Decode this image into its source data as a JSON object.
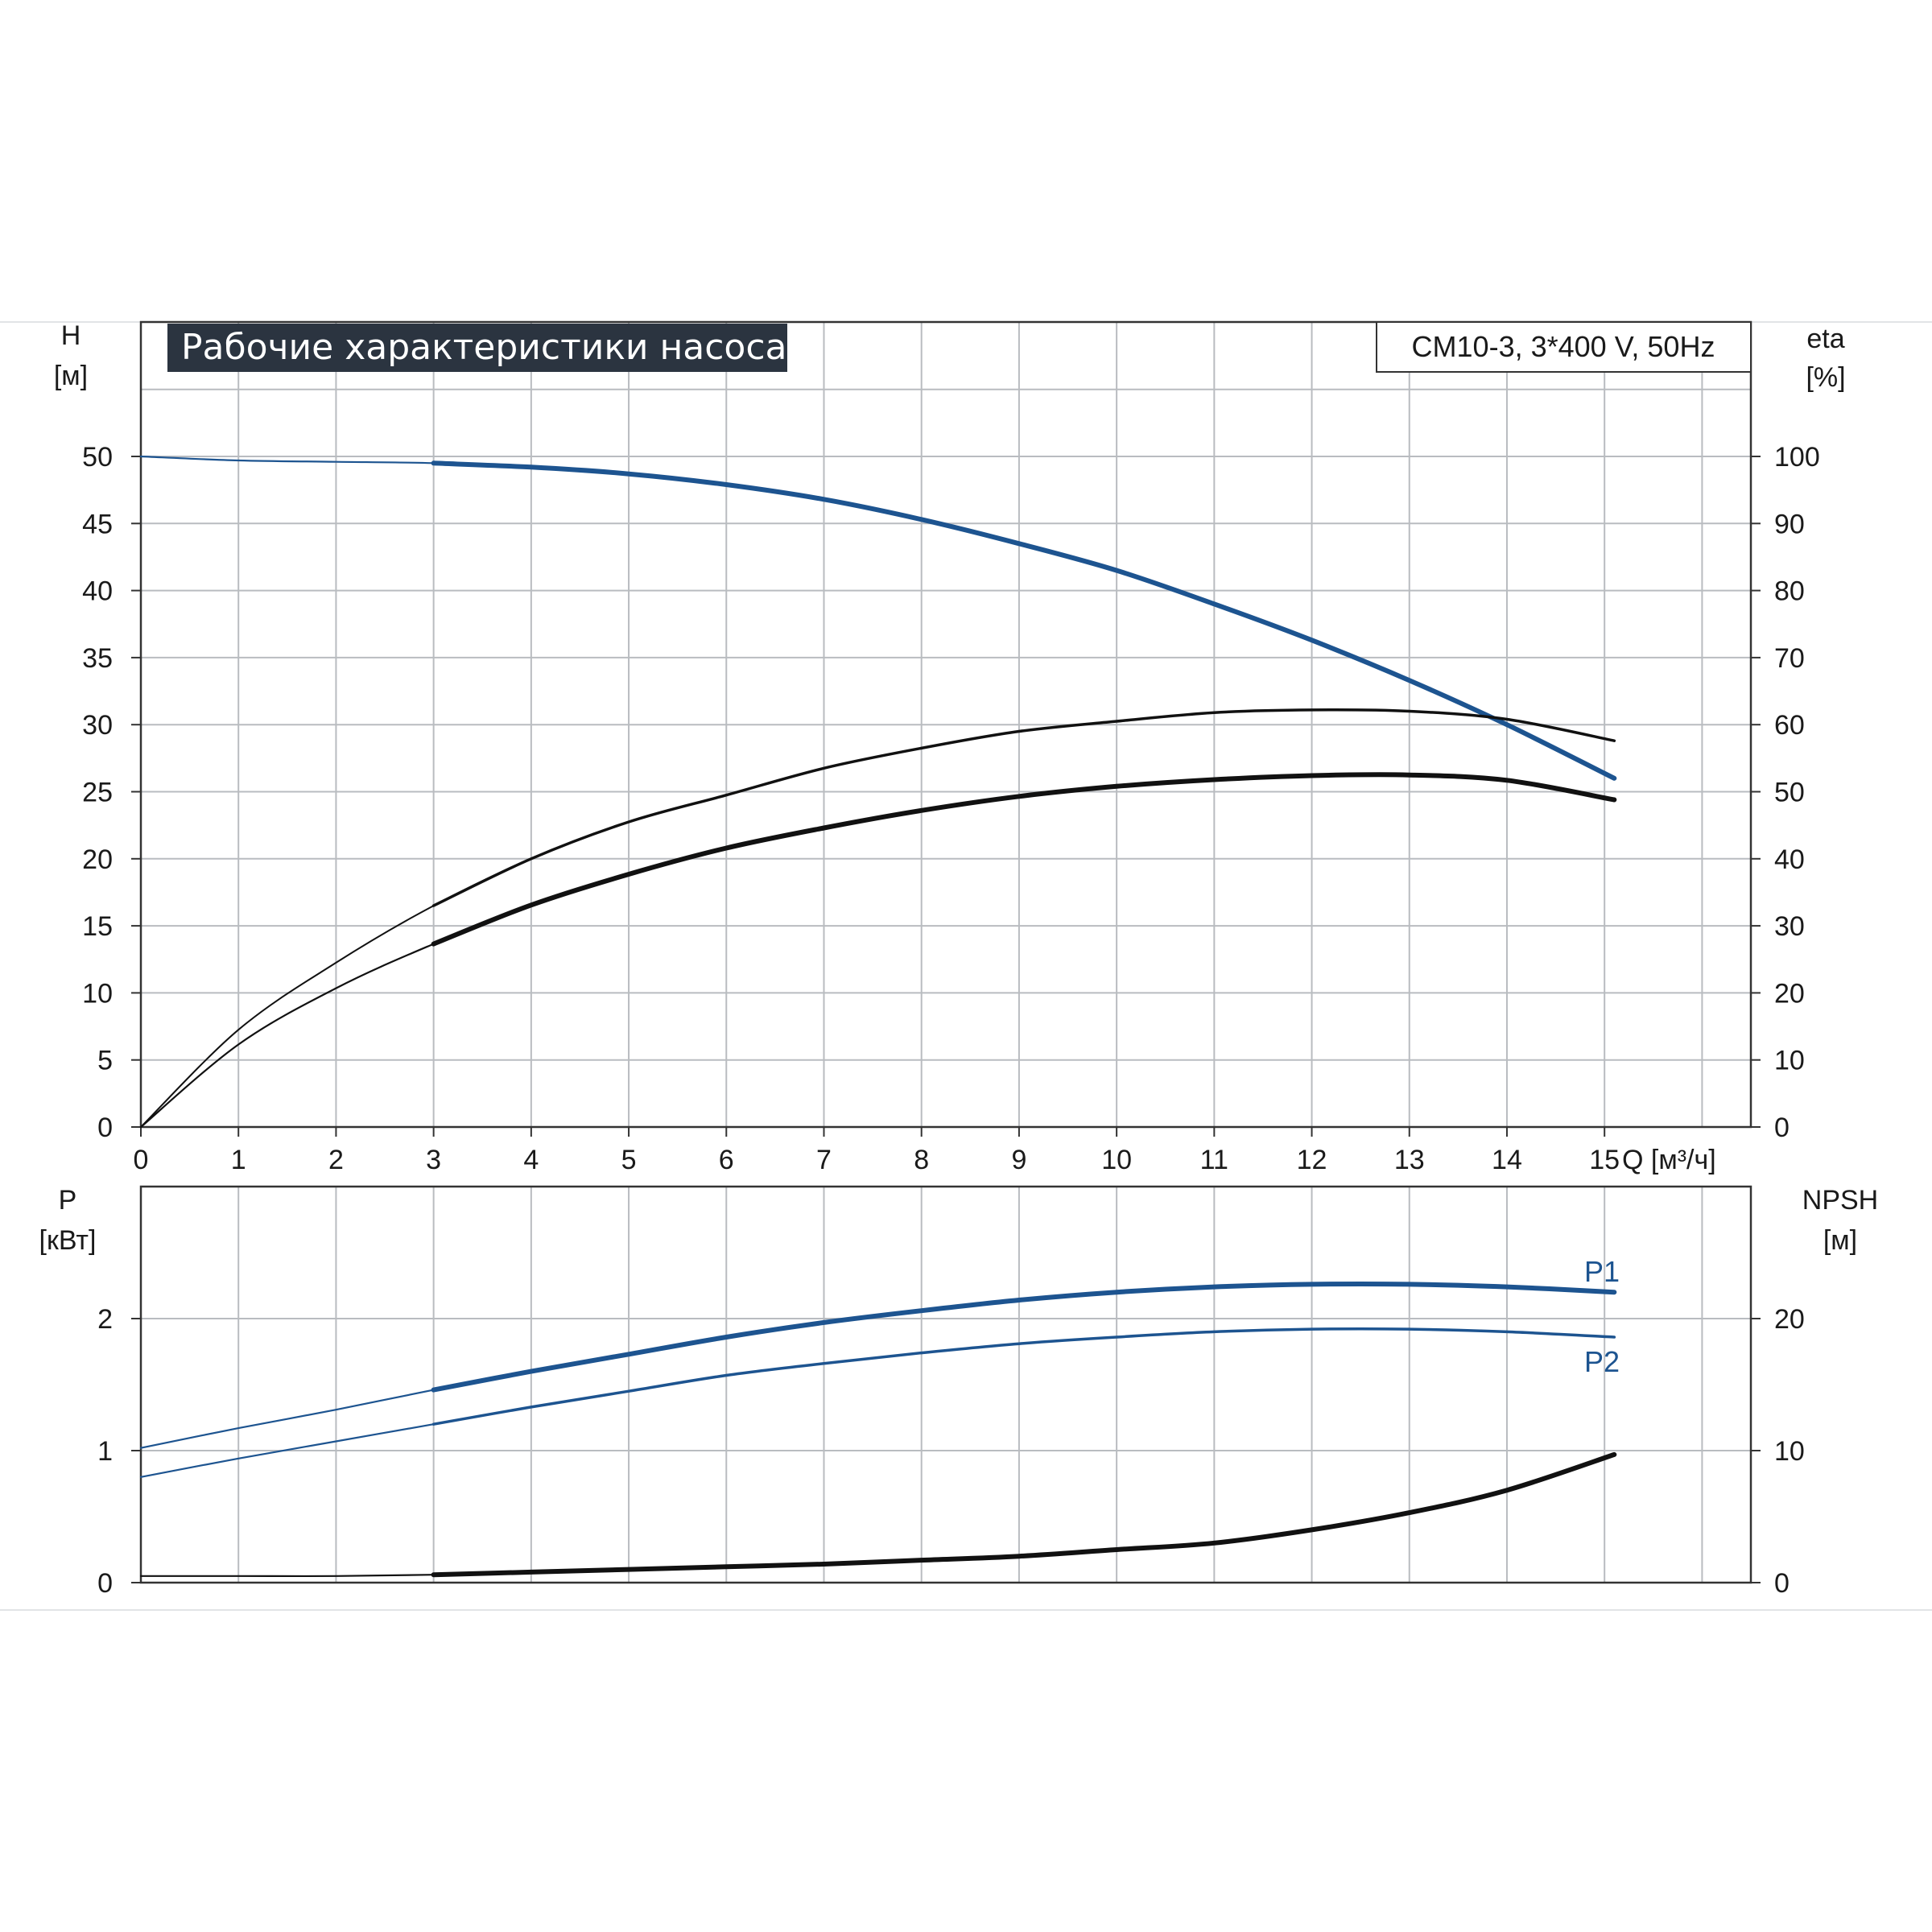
{
  "header": {
    "title": "Рабочие характеристики насоса",
    "model": "CM10-3, 3*400 V, 50Hz"
  },
  "colors": {
    "blue": "#1d5490",
    "black": "#111111",
    "grid": "#b9bcc0",
    "title_bg": "#2b3440"
  },
  "chart_data": [
    {
      "type": "line",
      "x_label": "Q [м³/ч]",
      "left_axis": {
        "label": "H",
        "unit": "[м]",
        "range": [
          0,
          50
        ],
        "ticks": [
          0,
          5,
          10,
          15,
          20,
          25,
          30,
          35,
          40,
          45,
          50
        ]
      },
      "right_axis": {
        "label": "eta",
        "unit": "[%]",
        "range": [
          0,
          100
        ],
        "ticks": [
          0,
          10,
          20,
          30,
          40,
          50,
          60,
          70,
          80,
          90,
          100
        ]
      },
      "x_range": [
        0,
        16.5
      ],
      "x_ticks": [
        0,
        1,
        2,
        3,
        4,
        5,
        6,
        7,
        8,
        9,
        10,
        11,
        12,
        13,
        14,
        15
      ],
      "grid": true,
      "series": [
        {
          "key": "H",
          "axis": "left",
          "color": "blue",
          "x": [
            0,
            1,
            2,
            3,
            4,
            5,
            6,
            7,
            8,
            9,
            10,
            11,
            12,
            13,
            14,
            15.1
          ],
          "y": [
            50,
            49.7,
            49.6,
            49.5,
            49.2,
            48.7,
            47.9,
            46.8,
            45.3,
            43.5,
            41.5,
            39,
            36.3,
            33.3,
            30,
            26
          ]
        },
        {
          "key": "eta_total",
          "axis": "right",
          "color": "black",
          "x": [
            0,
            1,
            2,
            3,
            4,
            5,
            6,
            7,
            8,
            9,
            10,
            11,
            12,
            13,
            14,
            15.1
          ],
          "y": [
            0,
            12.3,
            20.7,
            27.3,
            33.1,
            37.7,
            41.6,
            44.6,
            47.2,
            49.3,
            50.8,
            51.8,
            52.4,
            52.5,
            51.7,
            48.8
          ]
        },
        {
          "key": "eta_pump",
          "axis": "right",
          "color": "black",
          "x": [
            0,
            1,
            2,
            3,
            4,
            5,
            6,
            7,
            8,
            9,
            10,
            11,
            12,
            13,
            14,
            15.1
          ],
          "y": [
            0,
            14.5,
            24.5,
            33,
            40,
            45.5,
            49.5,
            53.5,
            56.5,
            59,
            60.5,
            61.8,
            62.2,
            62,
            60.8,
            57.6
          ]
        }
      ]
    },
    {
      "type": "line",
      "left_axis": {
        "label": "P",
        "unit": "[кВт]",
        "range": [
          0,
          2.5
        ],
        "ticks": [
          0,
          1,
          2
        ]
      },
      "right_axis": {
        "label": "NPSH",
        "unit": "[м]",
        "range": [
          0,
          25
        ],
        "ticks": [
          0,
          10,
          20
        ]
      },
      "x_range": [
        0,
        16.5
      ],
      "grid": true,
      "series": [
        {
          "name": "P1",
          "axis": "left",
          "color": "blue",
          "x": [
            0,
            1,
            2,
            3,
            4,
            5,
            6,
            7,
            8,
            9,
            10,
            11,
            12,
            13,
            14,
            15.1
          ],
          "y": [
            1.02,
            1.17,
            1.31,
            1.46,
            1.6,
            1.73,
            1.86,
            1.97,
            2.06,
            2.14,
            2.2,
            2.24,
            2.26,
            2.26,
            2.24,
            2.2
          ]
        },
        {
          "name": "P2",
          "axis": "left",
          "color": "blue",
          "x": [
            0,
            1,
            2,
            3,
            4,
            5,
            6,
            7,
            8,
            9,
            10,
            11,
            12,
            13,
            14,
            15.1
          ],
          "y": [
            0.8,
            0.94,
            1.07,
            1.2,
            1.33,
            1.45,
            1.57,
            1.66,
            1.74,
            1.81,
            1.86,
            1.9,
            1.92,
            1.92,
            1.9,
            1.86
          ]
        },
        {
          "key": "NPSH",
          "axis": "right",
          "color": "black",
          "x": [
            0,
            1,
            2,
            3,
            4,
            5,
            6,
            7,
            8,
            9,
            10,
            11,
            12,
            13,
            14,
            15.1
          ],
          "y": [
            0.5,
            0.5,
            0.5,
            0.6,
            0.8,
            1.0,
            1.2,
            1.4,
            1.7,
            2.0,
            2.5,
            3.0,
            4.0,
            5.3,
            7.0,
            9.7
          ]
        }
      ]
    }
  ]
}
